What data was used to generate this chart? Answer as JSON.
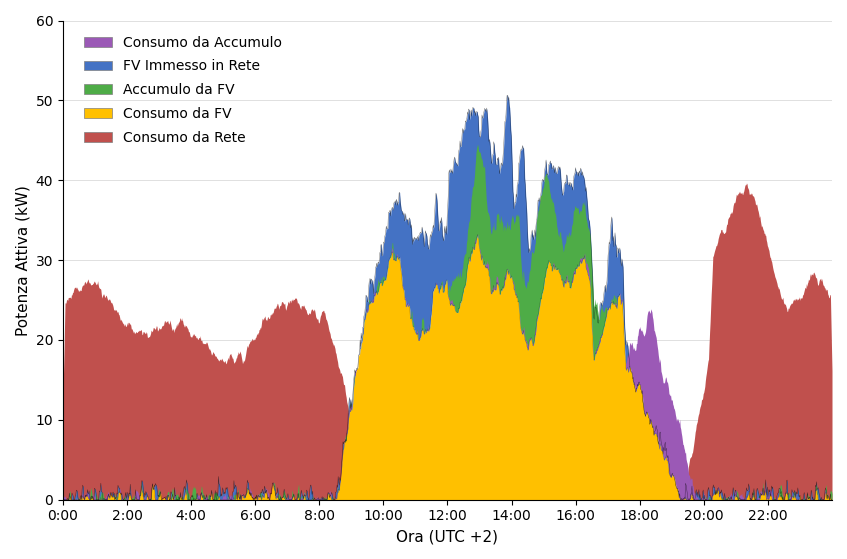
{
  "title": "",
  "xlabel": "Ora (UTC +2)",
  "ylabel": "Potenza Attiva (kW)",
  "ylim": [
    0,
    60
  ],
  "xlim_hours": [
    0,
    24
  ],
  "xtick_hours": [
    0,
    2,
    4,
    6,
    8,
    10,
    12,
    14,
    16,
    18,
    20,
    22
  ],
  "xtick_labels": [
    "0:00",
    "2:00",
    "4:00",
    "6:00",
    "8:00",
    "10:00",
    "12:00",
    "14:00",
    "16:00",
    "18:00",
    "20:00",
    "22:00"
  ],
  "colors": {
    "consumo_da_rete": "#C0504D",
    "consumo_da_fv": "#FFC000",
    "accumulo_da_fv": "#4EAC47",
    "fv_immesso_in_rete": "#4472C4",
    "consumo_da_accumulo": "#9B59B6"
  },
  "legend_labels": [
    "Consumo da Accumulo",
    "FV Immesso in Rete",
    "Accumulo da FV",
    "Consumo da FV",
    "Consumo da Rete"
  ],
  "figsize": [
    8.47,
    5.59
  ],
  "dpi": 100
}
